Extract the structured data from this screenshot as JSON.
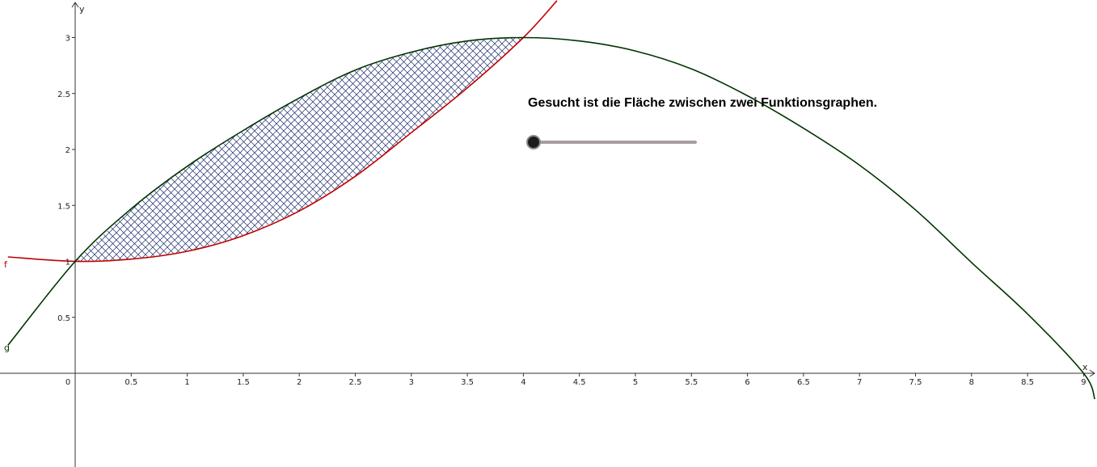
{
  "caption": "Gesucht ist die Fläche zwischen zwei Funktionsgraphen.",
  "slider": {
    "value": 0
  },
  "chart_data": {
    "type": "line",
    "xlabel": "x",
    "ylabel": "y",
    "xlim": [
      0,
      9
    ],
    "ylim": [
      0,
      3
    ],
    "x_ticks": [
      "0.5",
      "1",
      "1.5",
      "2",
      "2.5",
      "3",
      "3.5",
      "4",
      "4.5",
      "5",
      "5.5",
      "6",
      "6.5",
      "7",
      "7.5",
      "8",
      "8.5",
      "9"
    ],
    "x_tick_values": [
      0.5,
      1,
      1.5,
      2,
      2.5,
      3,
      3.5,
      4,
      4.5,
      5,
      5.5,
      6,
      6.5,
      7,
      7.5,
      8,
      8.5,
      9
    ],
    "y_ticks": [
      "0.5",
      "1",
      "1.5",
      "2",
      "2.5",
      "3"
    ],
    "y_tick_values": [
      0.5,
      1,
      1.5,
      2,
      2.5,
      3
    ],
    "origin_label": "0",
    "series": [
      {
        "name": "f",
        "color": "#c00000",
        "x": [
          -0.6,
          0,
          0.5,
          1,
          1.5,
          2,
          2.5,
          3,
          3.5,
          4,
          4.3
        ],
        "y": [
          1.04,
          1.0,
          1.02,
          1.09,
          1.23,
          1.45,
          1.76,
          2.15,
          2.55,
          3.0,
          3.33
        ]
      },
      {
        "name": "g",
        "color": "#003300",
        "x": [
          -0.6,
          0,
          0.5,
          1,
          1.5,
          2,
          2.5,
          3,
          3.5,
          4,
          4.5,
          5,
          5.5,
          6,
          6.5,
          7,
          7.5,
          8,
          8.5,
          9,
          9.1
        ],
        "y": [
          0.25,
          1.0,
          1.47,
          1.85,
          2.17,
          2.46,
          2.71,
          2.87,
          2.97,
          3.0,
          2.97,
          2.88,
          2.72,
          2.48,
          2.19,
          1.86,
          1.46,
          0.99,
          0.53,
          0.0,
          -0.23
        ]
      }
    ],
    "shaded_region": {
      "between": [
        "f",
        "g"
      ],
      "x_from": 0,
      "x_to": 4,
      "pattern": "crosshatch",
      "color": "#1a2a6c"
    }
  }
}
